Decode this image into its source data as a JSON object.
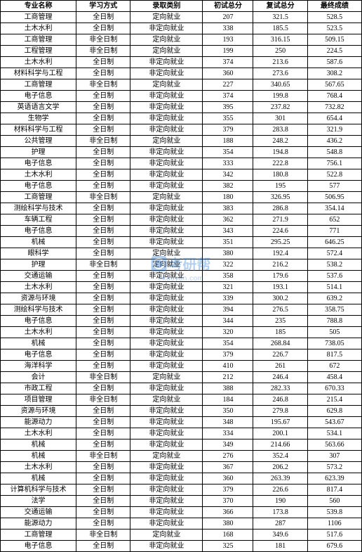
{
  "table": {
    "columns": [
      "专业名称",
      "学习方式",
      "录取类别",
      "初试总分",
      "复试总分",
      "最终成绩"
    ],
    "col_widths": [
      "21%",
      "15%",
      "20%",
      "14%",
      "15%",
      "15%"
    ],
    "border_color": "#000000",
    "background_color": "#ffffff",
    "font_size": 10,
    "rows": [
      [
        "工商管理",
        "全日制",
        "定向就业",
        "207",
        "321.5",
        "528.5"
      ],
      [
        "土木水利",
        "全日制",
        "非定向就业",
        "338",
        "185.5",
        "523.5"
      ],
      [
        "工商管理",
        "非全日制",
        "定向就业",
        "193",
        "316.15",
        "509.15"
      ],
      [
        "工程管理",
        "非全日制",
        "定向就业",
        "199",
        "250",
        "224.5"
      ],
      [
        "土木水利",
        "全日制",
        "非定向就业",
        "374",
        "213.6",
        "587.6"
      ],
      [
        "材料科学与工程",
        "全日制",
        "非定向就业",
        "360",
        "273.6",
        "308.2"
      ],
      [
        "工商管理",
        "非全日制",
        "定向就业",
        "227",
        "340.65",
        "567.65"
      ],
      [
        "电子信息",
        "全日制",
        "非定向就业",
        "374",
        "199.8",
        "768.4"
      ],
      [
        "英语语言文学",
        "全日制",
        "非定向就业",
        "395",
        "237.82",
        "732.82"
      ],
      [
        "生物学",
        "全日制",
        "非定向就业",
        "355",
        "301",
        "654.4"
      ],
      [
        "材料科学与工程",
        "全日制",
        "非定向就业",
        "379",
        "283.8",
        "321.9"
      ],
      [
        "公共管理",
        "非全日制",
        "定向就业",
        "188",
        "248.2",
        "436.2"
      ],
      [
        "护理",
        "全日制",
        "非定向就业",
        "354",
        "194.8",
        "548.8"
      ],
      [
        "电子信息",
        "全日制",
        "非定向就业",
        "333",
        "222.8",
        "756.1"
      ],
      [
        "土木水利",
        "全日制",
        "非定向就业",
        "342",
        "180.8",
        "522.8"
      ],
      [
        "电子信息",
        "全日制",
        "非定向就业",
        "382",
        "195",
        "577"
      ],
      [
        "工商管理",
        "非全日制",
        "定向就业",
        "180",
        "326.95",
        "506.95"
      ],
      [
        "测绘科学与技术",
        "全日制",
        "非定向就业",
        "383",
        "286.8",
        "354.14"
      ],
      [
        "车辆工程",
        "全日制",
        "非定向就业",
        "362",
        "271.9",
        "652"
      ],
      [
        "电子信息",
        "全日制",
        "非定向就业",
        "343",
        "224.6",
        "771"
      ],
      [
        "机械",
        "全日制",
        "非定向就业",
        "351",
        "295.25",
        "646.25"
      ],
      [
        "眼科学",
        "全日制",
        "定向就业",
        "380",
        "192.4",
        "572.4"
      ],
      [
        "护理",
        "非全日制",
        "定向就业",
        "322",
        "216.2",
        "538.2"
      ],
      [
        "交通运输",
        "全日制",
        "非定向就业",
        "358",
        "179.6",
        "537.6"
      ],
      [
        "土木水利",
        "全日制",
        "非定向就业",
        "321",
        "193.1",
        "514.1"
      ],
      [
        "资源与环境",
        "全日制",
        "非定向就业",
        "339",
        "300.2",
        "639.2"
      ],
      [
        "测绘科学与技术",
        "全日制",
        "非定向就业",
        "394",
        "276.5",
        "358.75"
      ],
      [
        "电子信息",
        "全日制",
        "非定向就业",
        "344",
        "235",
        "788.8"
      ],
      [
        "土木水利",
        "全日制",
        "非定向就业",
        "320",
        "185",
        "505"
      ],
      [
        "机械",
        "全日制",
        "非定向就业",
        "354",
        "268.84",
        "738.05"
      ],
      [
        "电子信息",
        "全日制",
        "非定向就业",
        "379",
        "226.7",
        "817.5"
      ],
      [
        "海洋科学",
        "全日制",
        "非定向就业",
        "410",
        "261",
        "672"
      ],
      [
        "会计",
        "非全日制",
        "定向就业",
        "212",
        "246.4",
        "458.4"
      ],
      [
        "市政工程",
        "全日制",
        "非定向就业",
        "388",
        "282.33",
        "670.33"
      ],
      [
        "项目管理",
        "非全日制",
        "定向就业",
        "184",
        "246.8",
        "215.4"
      ],
      [
        "资源与环境",
        "全日制",
        "非定向就业",
        "350",
        "279.8",
        "629.8"
      ],
      [
        "能源动力",
        "全日制",
        "非定向就业",
        "348",
        "195.67",
        "543.67"
      ],
      [
        "土木水利",
        "全日制",
        "非定向就业",
        "334",
        "200.1",
        "534.1"
      ],
      [
        "机械",
        "全日制",
        "非定向就业",
        "349",
        "214.66",
        "563.66"
      ],
      [
        "机械",
        "非全日制",
        "定向就业",
        "276",
        "352.4",
        "307"
      ],
      [
        "土木水利",
        "全日制",
        "非定向就业",
        "367",
        "206.2",
        "573.2"
      ],
      [
        "机械",
        "全日制",
        "非定向就业",
        "360",
        "263.39",
        "623.39"
      ],
      [
        "计算机科学与技术",
        "全日制",
        "非定向就业",
        "379",
        "226.6",
        "817.4"
      ],
      [
        "法学",
        "全日制",
        "非定向就业",
        "370",
        "190",
        "560"
      ],
      [
        "交通运输",
        "全日制",
        "非定向就业",
        "366",
        "173.8",
        "539.8"
      ],
      [
        "能源动力",
        "全日制",
        "非定向就业",
        "380",
        "287",
        "1106"
      ],
      [
        "工商管理",
        "非全日制",
        "定向就业",
        "168",
        "349.6",
        "517.6"
      ],
      [
        "电子信息",
        "全日制",
        "非定向就业",
        "325",
        "181",
        "679.6"
      ]
    ]
  },
  "watermark": {
    "title": "考研帮",
    "subtitle": "okaoyan.com",
    "color": "#2b7bd6",
    "opacity": 0.35
  }
}
